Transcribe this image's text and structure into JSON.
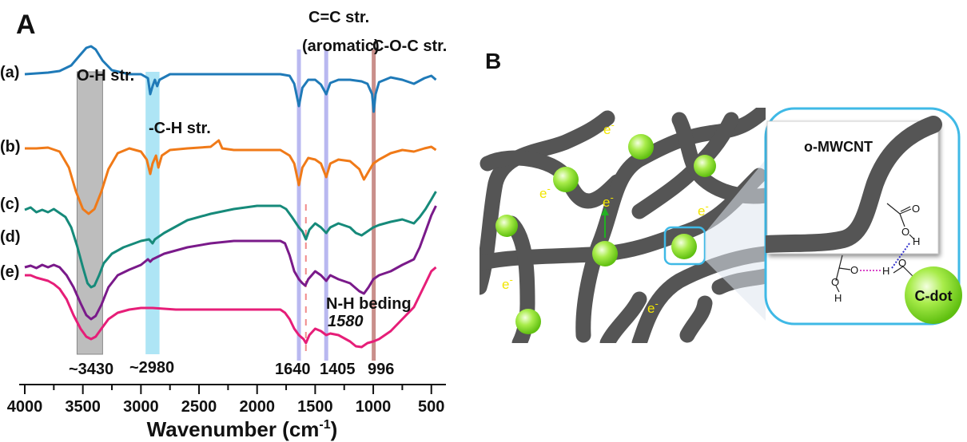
{
  "panels": {
    "a": "A",
    "b": "B"
  },
  "chart_data": {
    "type": "line",
    "title": "",
    "xlabel_main": "Wavenumber (cm",
    "xlabel_sup": "-1",
    "xlabel_close": ")",
    "xlim": [
      4000,
      450
    ],
    "x_reversed": true,
    "grid": false,
    "xticks": [
      4000,
      3500,
      3000,
      2500,
      2000,
      1500,
      1000,
      500
    ],
    "xtick_labels": [
      "4000",
      "3500",
      "3000",
      "2500",
      "2000",
      "1500",
      "1000",
      "500"
    ],
    "series": [
      {
        "name": "(a)",
        "color": "#1f7ab8",
        "points": [
          [
            4000,
            93
          ],
          [
            3900,
            92
          ],
          [
            3800,
            91
          ],
          [
            3700,
            89
          ],
          [
            3600,
            82
          ],
          [
            3530,
            70
          ],
          [
            3470,
            60
          ],
          [
            3430,
            58
          ],
          [
            3390,
            62
          ],
          [
            3330,
            76
          ],
          [
            3250,
            88
          ],
          [
            3100,
            93
          ],
          [
            3000,
            93
          ],
          [
            2940,
            98
          ],
          [
            2920,
            118
          ],
          [
            2900,
            108
          ],
          [
            2880,
            100
          ],
          [
            2860,
            108
          ],
          [
            2840,
            100
          ],
          [
            2750,
            93
          ],
          [
            2500,
            93
          ],
          [
            2000,
            93
          ],
          [
            1800,
            93
          ],
          [
            1720,
            95
          ],
          [
            1680,
            105
          ],
          [
            1640,
            133
          ],
          [
            1610,
            110
          ],
          [
            1560,
            100
          ],
          [
            1500,
            100
          ],
          [
            1450,
            106
          ],
          [
            1405,
            118
          ],
          [
            1370,
            104
          ],
          [
            1300,
            100
          ],
          [
            1200,
            100
          ],
          [
            1100,
            102
          ],
          [
            1050,
            105
          ],
          [
            1010,
            118
          ],
          [
            996,
            140
          ],
          [
            980,
            118
          ],
          [
            950,
            103
          ],
          [
            850,
            97
          ],
          [
            750,
            100
          ],
          [
            650,
            105
          ],
          [
            560,
            98
          ],
          [
            500,
            95
          ],
          [
            460,
            100
          ]
        ]
      },
      {
        "name": "(b)",
        "color": "#f07a18",
        "points": [
          [
            4000,
            186
          ],
          [
            3900,
            186
          ],
          [
            3800,
            185
          ],
          [
            3700,
            190
          ],
          [
            3620,
            210
          ],
          [
            3560,
            240
          ],
          [
            3500,
            262
          ],
          [
            3450,
            268
          ],
          [
            3400,
            262
          ],
          [
            3340,
            240
          ],
          [
            3280,
            212
          ],
          [
            3200,
            192
          ],
          [
            3100,
            186
          ],
          [
            3000,
            190
          ],
          [
            2950,
            200
          ],
          [
            2920,
            218
          ],
          [
            2900,
            205
          ],
          [
            2870,
            195
          ],
          [
            2850,
            210
          ],
          [
            2820,
            195
          ],
          [
            2750,
            188
          ],
          [
            2600,
            186
          ],
          [
            2400,
            184
          ],
          [
            2330,
            176
          ],
          [
            2300,
            186
          ],
          [
            2200,
            188
          ],
          [
            2000,
            188
          ],
          [
            1800,
            188
          ],
          [
            1720,
            195
          ],
          [
            1680,
            205
          ],
          [
            1640,
            232
          ],
          [
            1610,
            210
          ],
          [
            1560,
            198
          ],
          [
            1500,
            200
          ],
          [
            1450,
            205
          ],
          [
            1405,
            222
          ],
          [
            1370,
            205
          ],
          [
            1300,
            200
          ],
          [
            1200,
            202
          ],
          [
            1120,
            212
          ],
          [
            1080,
            225
          ],
          [
            1040,
            215
          ],
          [
            1000,
            205
          ],
          [
            950,
            200
          ],
          [
            850,
            192
          ],
          [
            750,
            188
          ],
          [
            650,
            190
          ],
          [
            560,
            186
          ],
          [
            500,
            184
          ],
          [
            460,
            188
          ]
        ]
      },
      {
        "name": "(c)",
        "color": "#168a7a",
        "points": [
          [
            4000,
            263
          ],
          [
            3950,
            260
          ],
          [
            3900,
            266
          ],
          [
            3850,
            263
          ],
          [
            3800,
            266
          ],
          [
            3750,
            262
          ],
          [
            3700,
            267
          ],
          [
            3650,
            272
          ],
          [
            3600,
            285
          ],
          [
            3550,
            308
          ],
          [
            3500,
            335
          ],
          [
            3460,
            355
          ],
          [
            3430,
            360
          ],
          [
            3400,
            358
          ],
          [
            3360,
            345
          ],
          [
            3320,
            330
          ],
          [
            3250,
            318
          ],
          [
            3150,
            310
          ],
          [
            3000,
            302
          ],
          [
            2930,
            300
          ],
          [
            2900,
            305
          ],
          [
            2880,
            300
          ],
          [
            2800,
            292
          ],
          [
            2600,
            276
          ],
          [
            2400,
            268
          ],
          [
            2200,
            262
          ],
          [
            2000,
            258
          ],
          [
            1800,
            258
          ],
          [
            1750,
            262
          ],
          [
            1700,
            272
          ],
          [
            1640,
            285
          ],
          [
            1610,
            290
          ],
          [
            1580,
            300
          ],
          [
            1550,
            288
          ],
          [
            1500,
            280
          ],
          [
            1450,
            285
          ],
          [
            1405,
            292
          ],
          [
            1370,
            285
          ],
          [
            1300,
            280
          ],
          [
            1200,
            285
          ],
          [
            1150,
            292
          ],
          [
            1100,
            295
          ],
          [
            1050,
            290
          ],
          [
            1000,
            285
          ],
          [
            950,
            282
          ],
          [
            850,
            278
          ],
          [
            750,
            275
          ],
          [
            650,
            280
          ],
          [
            600,
            272
          ],
          [
            550,
            262
          ],
          [
            500,
            250
          ],
          [
            460,
            240
          ]
        ]
      },
      {
        "name": "(d)",
        "color": "#7a1a8a",
        "points": [
          [
            4000,
            335
          ],
          [
            3950,
            333
          ],
          [
            3900,
            336
          ],
          [
            3850,
            332
          ],
          [
            3800,
            335
          ],
          [
            3750,
            332
          ],
          [
            3700,
            335
          ],
          [
            3640,
            345
          ],
          [
            3580,
            360
          ],
          [
            3520,
            380
          ],
          [
            3470,
            395
          ],
          [
            3430,
            400
          ],
          [
            3390,
            396
          ],
          [
            3340,
            382
          ],
          [
            3280,
            360
          ],
          [
            3200,
            345
          ],
          [
            3100,
            338
          ],
          [
            3000,
            332
          ],
          [
            2940,
            325
          ],
          [
            2920,
            328
          ],
          [
            2900,
            325
          ],
          [
            2800,
            318
          ],
          [
            2600,
            310
          ],
          [
            2400,
            305
          ],
          [
            2200,
            302
          ],
          [
            2000,
            302
          ],
          [
            1800,
            302
          ],
          [
            1760,
            305
          ],
          [
            1720,
            320
          ],
          [
            1680,
            340
          ],
          [
            1640,
            350
          ],
          [
            1610,
            355
          ],
          [
            1585,
            358
          ],
          [
            1560,
            350
          ],
          [
            1500,
            340
          ],
          [
            1450,
            345
          ],
          [
            1405,
            352
          ],
          [
            1370,
            345
          ],
          [
            1300,
            350
          ],
          [
            1200,
            355
          ],
          [
            1120,
            365
          ],
          [
            1080,
            368
          ],
          [
            1040,
            360
          ],
          [
            1000,
            350
          ],
          [
            950,
            345
          ],
          [
            850,
            340
          ],
          [
            750,
            332
          ],
          [
            650,
            325
          ],
          [
            600,
            310
          ],
          [
            550,
            290
          ],
          [
            500,
            270
          ],
          [
            460,
            258
          ]
        ]
      },
      {
        "name": "(e)",
        "color": "#e61e78",
        "points": [
          [
            4000,
            345
          ],
          [
            3950,
            345
          ],
          [
            3900,
            348
          ],
          [
            3850,
            350
          ],
          [
            3800,
            352
          ],
          [
            3750,
            356
          ],
          [
            3700,
            362
          ],
          [
            3640,
            375
          ],
          [
            3580,
            395
          ],
          [
            3520,
            412
          ],
          [
            3470,
            422
          ],
          [
            3430,
            425
          ],
          [
            3390,
            422
          ],
          [
            3340,
            412
          ],
          [
            3280,
            400
          ],
          [
            3200,
            392
          ],
          [
            3100,
            388
          ],
          [
            3000,
            386
          ],
          [
            2900,
            386
          ],
          [
            2700,
            388
          ],
          [
            2400,
            388
          ],
          [
            2200,
            388
          ],
          [
            2000,
            388
          ],
          [
            1800,
            388
          ],
          [
            1760,
            392
          ],
          [
            1720,
            400
          ],
          [
            1680,
            412
          ],
          [
            1640,
            420
          ],
          [
            1600,
            425
          ],
          [
            1580,
            430
          ],
          [
            1550,
            420
          ],
          [
            1500,
            412
          ],
          [
            1450,
            415
          ],
          [
            1405,
            420
          ],
          [
            1370,
            418
          ],
          [
            1300,
            420
          ],
          [
            1200,
            428
          ],
          [
            1150,
            434
          ],
          [
            1100,
            435
          ],
          [
            1050,
            430
          ],
          [
            1000,
            428
          ],
          [
            950,
            425
          ],
          [
            850,
            415
          ],
          [
            750,
            400
          ],
          [
            650,
            385
          ],
          [
            600,
            370
          ],
          [
            550,
            355
          ],
          [
            500,
            340
          ],
          [
            460,
            335
          ]
        ]
      }
    ],
    "bands": [
      {
        "kind": "rect",
        "from": 3550,
        "to": 3330,
        "color": "#bdbdbd"
      },
      {
        "kind": "rect",
        "from": 2960,
        "to": 2840,
        "color": "#aee5f5"
      },
      {
        "kind": "line",
        "at": 1640,
        "color": "#b9b8f0"
      },
      {
        "kind": "line",
        "at": 1405,
        "color": "#b9b8f0"
      },
      {
        "kind": "line",
        "at": 996,
        "color": "#c98f8b"
      },
      {
        "kind": "dash",
        "at": 1580,
        "color": "#f08a8a"
      }
    ],
    "annotations": {
      "oh": "O-H str.",
      "ch": "-C-H str.",
      "cc1": "C=C str.",
      "cc2": "(aromatic)",
      "coc": "C-O-C str.",
      "nh": "N-H beding",
      "nh_val": "1580",
      "p3430": "~3430",
      "p2980": "~2980",
      "p1640": "1640",
      "p1405": "1405",
      "p996": "996"
    }
  },
  "schematic": {
    "electron_label": "e",
    "electron_sup": "-",
    "tube_label": "o-MWCNT",
    "dot_label": "C-dot",
    "atom_o": "O",
    "atom_h": "H",
    "colors": {
      "tube": "#555555",
      "dot": "#8ee02a",
      "callout": "#3fb9e6",
      "electron": "#f2e600"
    }
  }
}
